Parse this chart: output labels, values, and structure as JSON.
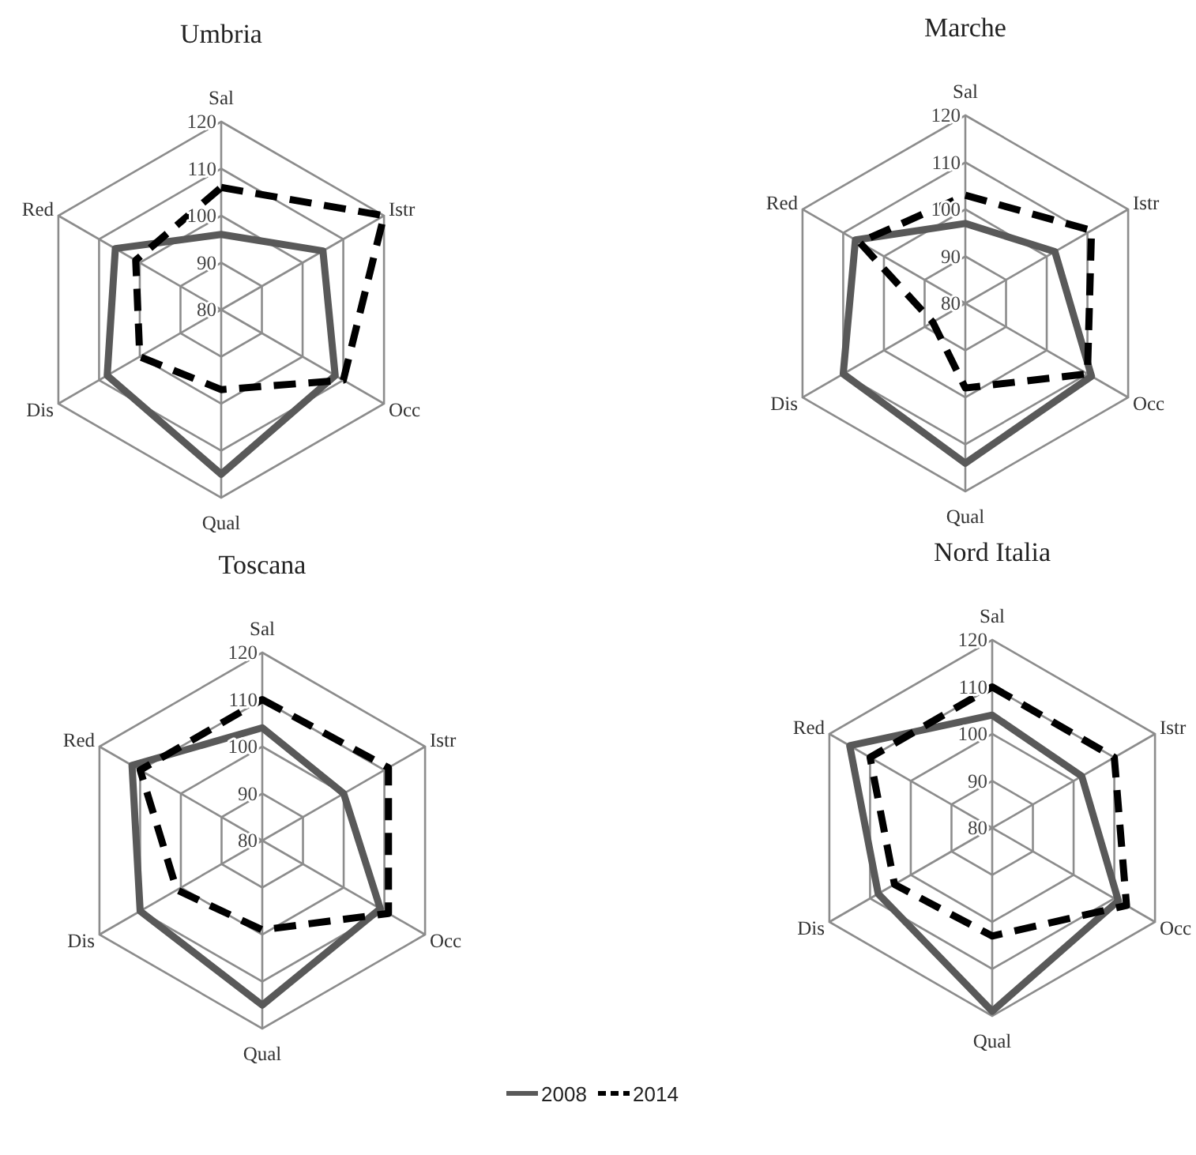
{
  "chart_data": [
    {
      "type": "radar",
      "title": "Umbria",
      "categories": [
        "Sal",
        "Istr",
        "Occ",
        "Qual",
        "Dis",
        "Red"
      ],
      "ylim": [
        80,
        120
      ],
      "yticks": [
        80,
        90,
        100,
        110,
        120
      ],
      "grid": true,
      "legend": "bottom",
      "series": [
        {
          "name": "2008",
          "color": "#595959",
          "line_style": "solid",
          "values": [
            96,
            105,
            108,
            115,
            108,
            106
          ]
        },
        {
          "name": "2014",
          "color": "#000000",
          "line_style": "dashed",
          "values": [
            106,
            120,
            110,
            97,
            100,
            101
          ]
        }
      ]
    },
    {
      "type": "radar",
      "title": "Marche",
      "categories": [
        "Sal",
        "Istr",
        "Occ",
        "Qual",
        "Dis",
        "Red"
      ],
      "ylim": [
        80,
        120
      ],
      "yticks": [
        80,
        90,
        100,
        110,
        120
      ],
      "grid": true,
      "legend": "bottom",
      "series": [
        {
          "name": "2008",
          "color": "#595959",
          "line_style": "solid",
          "values": [
            97,
            102,
            111,
            114,
            110,
            107
          ]
        },
        {
          "name": "2014",
          "color": "#000000",
          "line_style": "dashed",
          "values": [
            103,
            111,
            110,
            98,
            88,
            106
          ]
        }
      ]
    },
    {
      "type": "radar",
      "title": "Toscana",
      "categories": [
        "Sal",
        "Istr",
        "Occ",
        "Qual",
        "Dis",
        "Red"
      ],
      "ylim": [
        80,
        120
      ],
      "yticks": [
        80,
        90,
        100,
        110,
        120
      ],
      "grid": true,
      "legend": "bottom",
      "series": [
        {
          "name": "2008",
          "color": "#595959",
          "line_style": "solid",
          "values": [
            104,
            100,
            109,
            115,
            110,
            112
          ]
        },
        {
          "name": "2014",
          "color": "#000000",
          "line_style": "dashed",
          "values": [
            110,
            111,
            111,
            99,
            101,
            110
          ]
        }
      ]
    },
    {
      "type": "radar",
      "title": "Nord Italia",
      "categories": [
        "Sal",
        "Istr",
        "Occ",
        "Qual",
        "Dis",
        "Red"
      ],
      "ylim": [
        80,
        120
      ],
      "yticks": [
        80,
        90,
        100,
        110,
        120
      ],
      "grid": true,
      "legend": "bottom",
      "series": [
        {
          "name": "2008",
          "color": "#595959",
          "line_style": "solid",
          "values": [
            104,
            102,
            111,
            119,
            108,
            115
          ]
        },
        {
          "name": "2014",
          "color": "#000000",
          "line_style": "dashed",
          "values": [
            110,
            110,
            113,
            103,
            104,
            110
          ]
        }
      ]
    }
  ]
}
